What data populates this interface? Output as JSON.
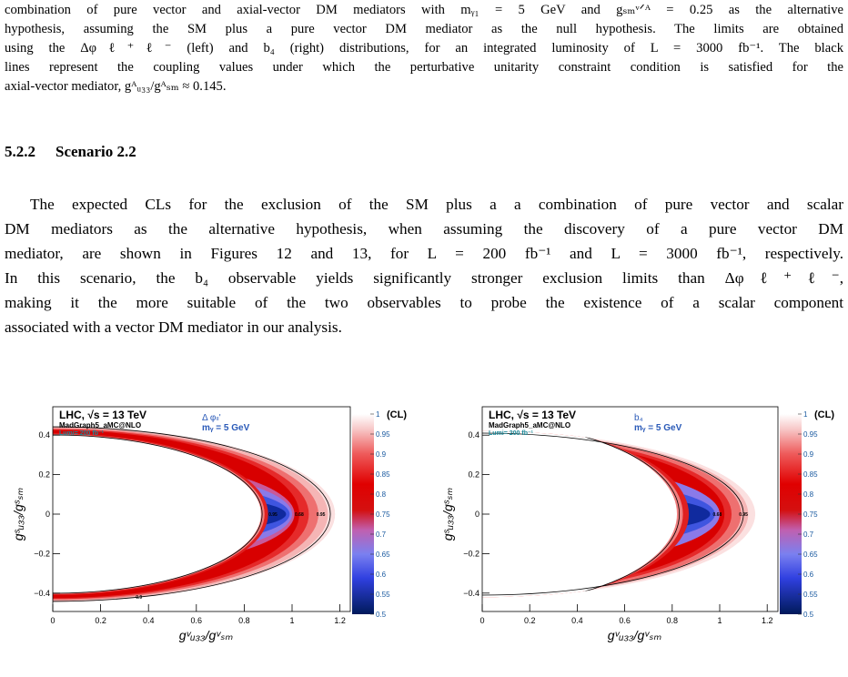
{
  "caption": {
    "lines": [
      "combination of pure vector and axial-vector DM mediators with mᵧ₁ = 5 GeV and gₛₘᵛᐟᴬ = 0.25 as the alternative",
      "hypothesis, assuming the SM plus a pure vector DM mediator as the null hypothesis. The limits are obtained",
      "using the Δφℓ⁺ℓ⁻ (left) and b₄ (right) distributions, for an integrated luminosity of L = 3000 fb⁻¹. The black",
      "lines represent the coupling values under which the perturbative unitarity constraint condition is satisfied for the",
      "axial-vector mediator, gᴬᵤ₃₃/gᴬₛₘ ≈ 0.145."
    ]
  },
  "section": {
    "number": "5.2.2",
    "title": "Scenario 2.2"
  },
  "paragraph": {
    "lines": [
      "The expected CLs for the exclusion of the SM plus a a combination of pure vector and scalar",
      "DM mediators as the alternative hypothesis, when assuming the discovery of a pure vector DM",
      "mediator, are shown in Figures 12 and 13, for L = 200 fb⁻¹ and L = 3000 fb⁻¹, respectively.",
      "In this scenario, the b₄ observable yields significantly stronger exclusion limits than Δφℓ⁺ℓ⁻,",
      "making it the more suitable of the two observables to probe the existence of a scalar component",
      "associated with a vector DM mediator in our analysis."
    ]
  },
  "figures": [
    {
      "energy_label": "LHC, √s = 13 TeV",
      "generator": "MadGraph5_aMC@NLO",
      "lumi": "Lumi= 200 fb⁻¹",
      "observable": "Δ φₗₗ'",
      "mass": "mᵧ = 5 GeV",
      "x_label": "gᵛᵤ₃₃/gᵛₛₘ",
      "y_label": "gˢᵤ₃₃/gˢₛₘ",
      "x_ticks": [
        "0",
        "0.2",
        "0.4",
        "0.6",
        "0.8",
        "1",
        "1.2"
      ],
      "y_ticks": [
        "0.4",
        "0.2",
        "0",
        "−0.2",
        "−0.4"
      ],
      "colorbar_label": "(CL)",
      "colorbar_ticks": [
        "1",
        "0.95",
        "0.9",
        "0.85",
        "0.8",
        "0.75",
        "0.7",
        "0.65",
        "0.6",
        "0.55",
        "0.5"
      ],
      "contour_labels": [
        "0.95",
        "0.68",
        "0.95",
        "0.9"
      ]
    },
    {
      "energy_label": "LHC, √s = 13 TeV",
      "generator": "MadGraph5_aMC@NLO",
      "lumi": "Lumi= 200 fb⁻¹",
      "observable": "b₄",
      "mass": "mᵧ = 5 GeV",
      "x_label": "gᵛᵤ₃₃/gᵛₛₘ",
      "y_label": "gˢᵤ₃₃/gˢₛₘ",
      "x_ticks": [
        "0",
        "0.2",
        "0.4",
        "0.6",
        "0.8",
        "1",
        "1.2"
      ],
      "y_ticks": [
        "0.4",
        "0.2",
        "0",
        "−0.2",
        "−0.4"
      ],
      "colorbar_label": "(CL)",
      "colorbar_ticks": [
        "1",
        "0.95",
        "0.9",
        "0.85",
        "0.8",
        "0.75",
        "0.7",
        "0.65",
        "0.6",
        "0.55",
        "0.5"
      ],
      "contour_labels": [
        "0.68",
        "0.95"
      ]
    }
  ]
}
